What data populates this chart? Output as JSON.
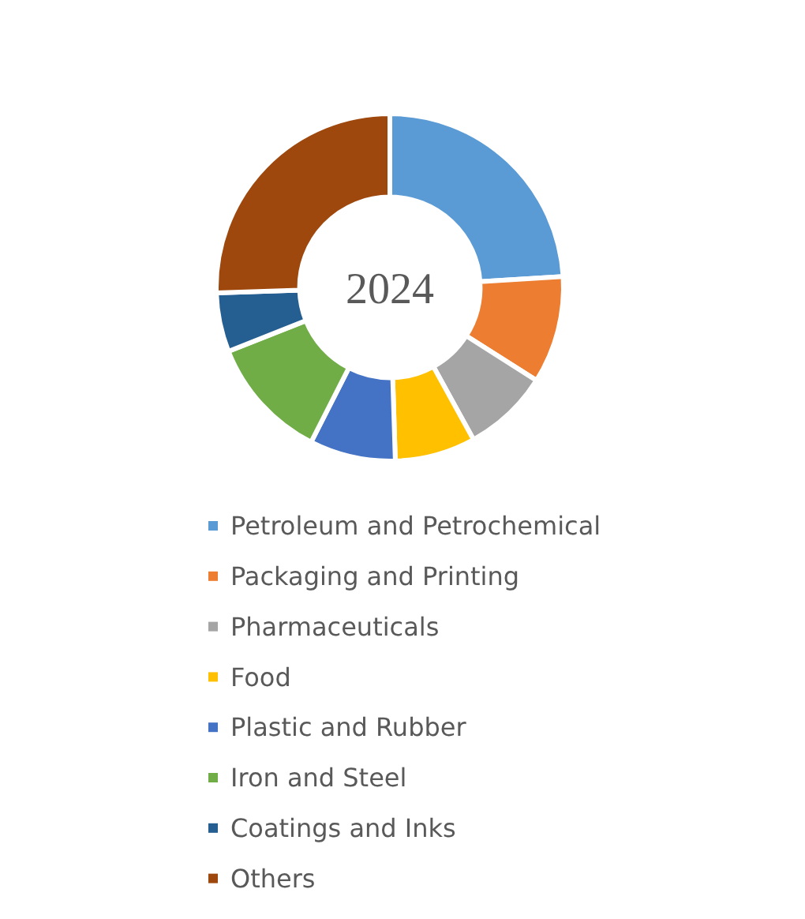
{
  "chart_data": {
    "type": "donut",
    "title": "2024",
    "categories": [
      "Petroleum and Petrochemical",
      "Packaging and Printing",
      "Pharmaceuticals",
      "Food",
      "Plastic and Rubber",
      "Iron and Steel",
      "Coatings and Inks",
      "Others"
    ],
    "values": [
      24,
      10,
      8,
      7.5,
      8,
      11.5,
      5.5,
      25.5
    ],
    "colors": [
      "#5b9bd5",
      "#ed7d31",
      "#a5a5a5",
      "#ffc000",
      "#4472c4",
      "#70ad47",
      "#255e91",
      "#9e480e"
    ],
    "legend": "bottom"
  }
}
